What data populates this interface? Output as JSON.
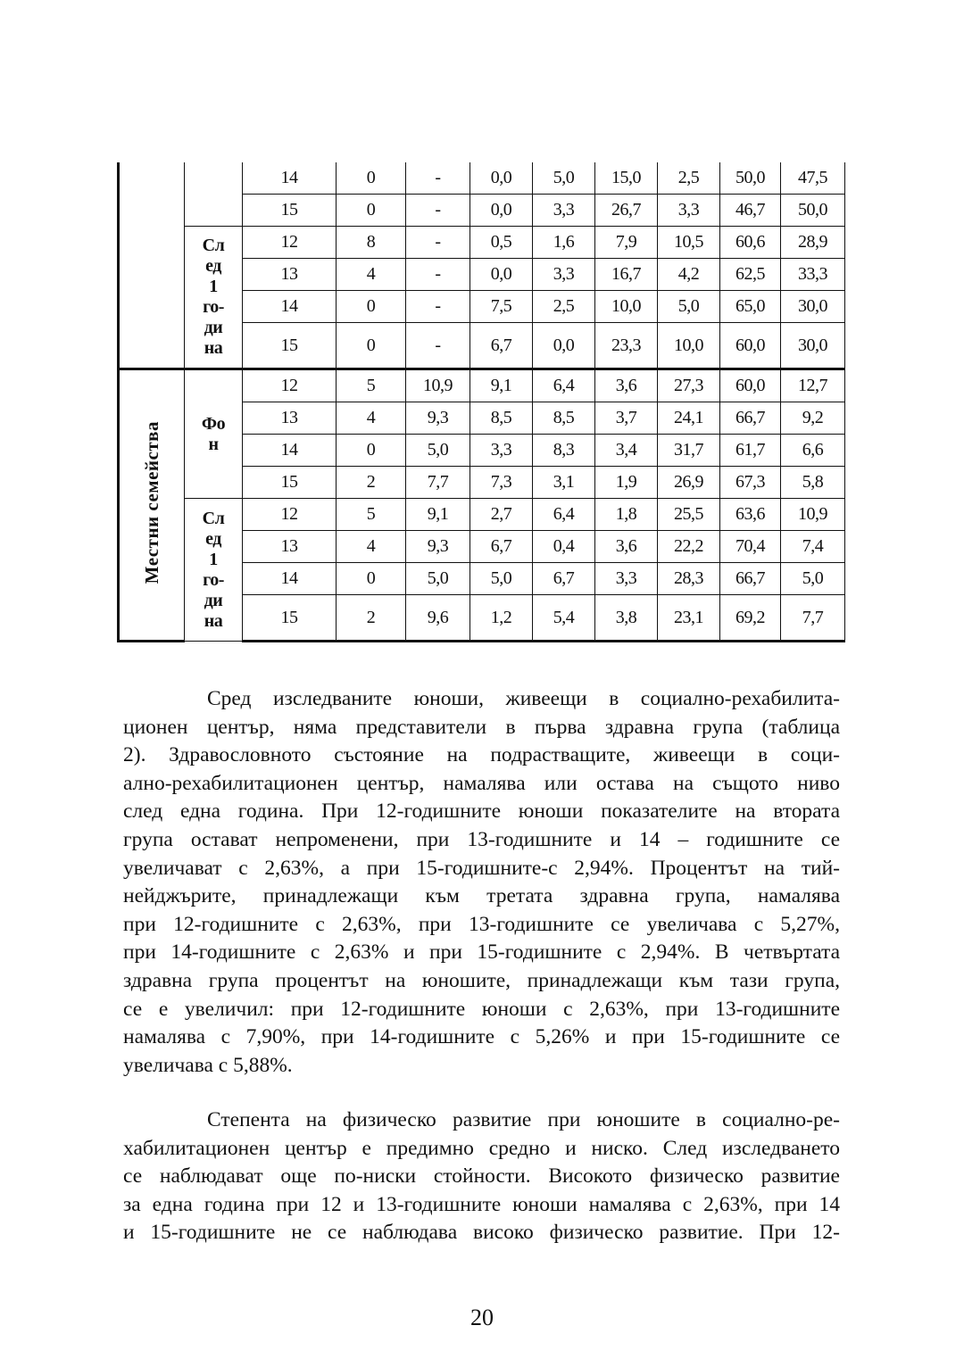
{
  "table": {
    "sections": [
      {
        "label": "",
        "groups": [
          {
            "label_lines": [],
            "rows": [
              [
                "14",
                "0",
                "-",
                "0,0",
                "5,0",
                "15,0",
                "2,5",
                "50,0",
                "47,5"
              ],
              [
                "15",
                "0",
                "-",
                "0,0",
                "3,3",
                "26,7",
                "3,3",
                "46,7",
                "50,0"
              ]
            ]
          },
          {
            "label_lines": [
              "Сл",
              "ед",
              "1",
              "го-",
              "ди",
              "на"
            ],
            "rows": [
              [
                "12",
                "8",
                "-",
                "0,5",
                "1,6",
                "7,9",
                "10,5",
                "60,6",
                "28,9"
              ],
              [
                "13",
                "4",
                "-",
                "0,0",
                "3,3",
                "16,7",
                "4,2",
                "62,5",
                "33,3"
              ],
              [
                "14",
                "0",
                "-",
                "7,5",
                "2,5",
                "10,0",
                "5,0",
                "65,0",
                "30,0"
              ],
              [
                "15",
                "0",
                "-",
                "6,7",
                "0,0",
                "23,3",
                "10,0",
                "60,0",
                "30,0"
              ]
            ]
          }
        ]
      },
      {
        "label": "Местни семейства",
        "groups": [
          {
            "label_lines": [
              "Фо",
              "н"
            ],
            "rows": [
              [
                "12",
                "5",
                "10,9",
                "9,1",
                "6,4",
                "3,6",
                "27,3",
                "60,0",
                "12,7"
              ],
              [
                "13",
                "4",
                "9,3",
                "8,5",
                "8,5",
                "3,7",
                "24,1",
                "66,7",
                "9,2"
              ],
              [
                "14",
                "0",
                "5,0",
                "3,3",
                "8,3",
                "3,4",
                "31,7",
                "61,7",
                "6,6"
              ],
              [
                "15",
                "2",
                "7,7",
                "7,3",
                "3,1",
                "1,9",
                "26,9",
                "67,3",
                "5,8"
              ]
            ]
          },
          {
            "label_lines": [
              "Сл",
              "ед",
              "1",
              "го-",
              "ди",
              "на"
            ],
            "rows": [
              [
                "12",
                "5",
                "9,1",
                "2,7",
                "6,4",
                "1,8",
                "25,5",
                "63,6",
                "10,9"
              ],
              [
                "13",
                "4",
                "9,3",
                "6,7",
                "0,4",
                "3,6",
                "22,2",
                "70,4",
                "7,4"
              ],
              [
                "14",
                "0",
                "5,0",
                "5,0",
                "6,7",
                "3,3",
                "28,3",
                "66,7",
                "5,0"
              ],
              [
                "15",
                "2",
                "9,6",
                "1,2",
                "5,4",
                "3,8",
                "23,1",
                "69,2",
                "7,7"
              ]
            ]
          }
        ]
      }
    ]
  },
  "body": {
    "paragraphs": [
      {
        "lines": [
          "Сред изследваните юноши, живеещи в социално-рехабилита-",
          "ционен център, няма представители в първа здравна група (таблица",
          "2). Здравословното състояние на подрастващите, живеещи в соци-",
          "ално-рехабилитационен център, намалява или остава на същото ниво",
          "след една година. При 12-годишните юноши показателите на втората",
          "група остават непроменени, при 13-годишните и 14 – годишните се",
          "увеличават с 2,63%, а при 15-годишните-с 2,94%. Процентът на тий-",
          "нейджърите, принадлежащи към третата здравна група, намалява",
          "при 12-годишните с 2,63%, при 13-годишните се увеличава с 5,27%,",
          "при 14-годишните с 2,63% и при 15-годишните с 2,94%. В четвъртата",
          "здравна група процентът на юношите, принадлежащи към тази група,",
          "се е увеличил: при 12-годишните юноши с 2,63%, при 13-годишните",
          "намалява с 7,90%, при 14-годишните с 5,26% и при 15-годишните се",
          "увеличава с 5,88%."
        ]
      },
      {
        "lines": [
          "Степента на физическо развитие при юношите в социално-ре-",
          "хабилитационен център е предимно средно и ниско. След изследването",
          "се наблюдават още по-ниски стойности. Високото физическо развитие",
          "за една година при 12 и 13-годишните юноши намалява с 2,63%, при 14",
          "и 15-годишните не се наблюдава високо физическо развитие. При 12-"
        ]
      }
    ]
  },
  "page_number": "20"
}
